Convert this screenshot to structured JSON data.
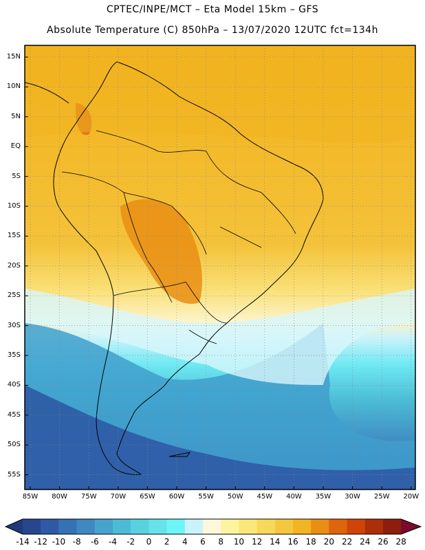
{
  "header": {
    "line1": "CPTEC/INPE/MCT –  Eta Model 15km – GFS",
    "line2": "Absolute Temperature (C) 850hPa – 13/07/2020 12UTC fct=134h"
  },
  "axes": {
    "lat_labels": [
      "15N",
      "10N",
      "5N",
      "EQ",
      "5S",
      "10S",
      "15S",
      "20S",
      "25S",
      "30S",
      "35S",
      "40S",
      "45S",
      "50S",
      "55S"
    ],
    "lon_labels": [
      "85W",
      "80W",
      "75W",
      "70W",
      "65W",
      "60W",
      "55W",
      "50W",
      "45W",
      "40W",
      "35W",
      "30W",
      "25W",
      "20W"
    ]
  },
  "colorbar": {
    "labels": [
      "-14",
      "-12",
      "-10",
      "-8",
      "-6",
      "-4",
      "-2",
      "0",
      "2",
      "4",
      "6",
      "8",
      "10",
      "12",
      "14",
      "16",
      "18",
      "20",
      "22",
      "24",
      "26",
      "28"
    ],
    "colors": [
      "#27468f",
      "#2e5aa5",
      "#3572b4",
      "#3f88c2",
      "#46a3cc",
      "#4cbcd6",
      "#59d2e0",
      "#66e3ea",
      "#6ef6f7",
      "#c8f3fb",
      "#fff7dc",
      "#fdf4a0",
      "#fae77a",
      "#f7d95a",
      "#f5c73e",
      "#f1b422",
      "#e98e14",
      "#df640c",
      "#cf4508",
      "#ad2e08",
      "#8d1d0d"
    ],
    "under_color": "#1f3a7a",
    "over_color": "#7a0a2e"
  }
}
